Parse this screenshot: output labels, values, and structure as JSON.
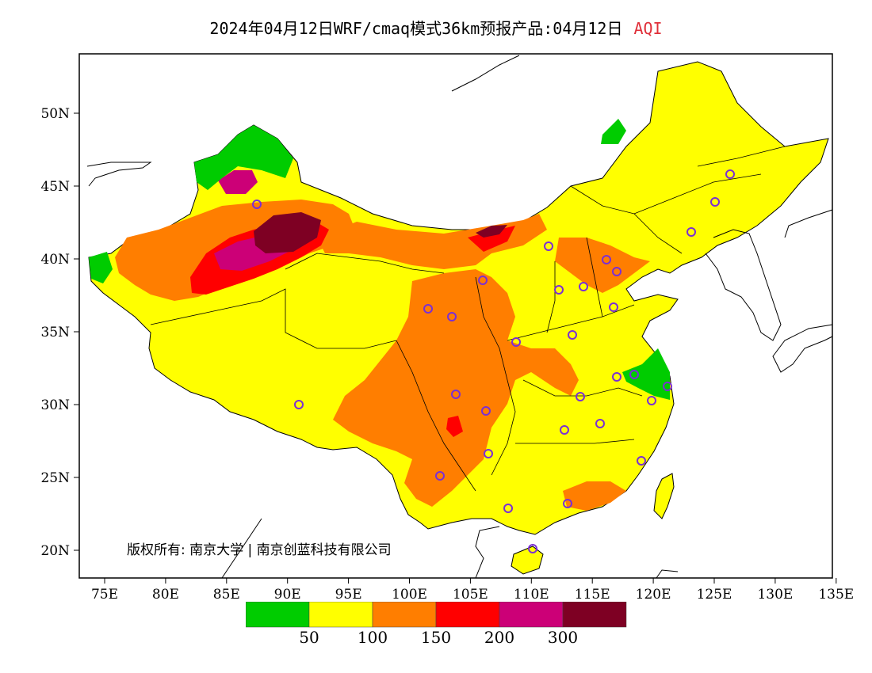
{
  "title": {
    "main": "2024年04月12日WRF/cmaq模式36km预报产品:04月12日",
    "variable": "AQI",
    "variable_color": "#e0303a"
  },
  "copyright": "版权所有: 南京大学 | 南京创蓝科技有限公司",
  "axes": {
    "x_ticks": [
      "75E",
      "80E",
      "85E",
      "90E",
      "95E",
      "100E",
      "105E",
      "110E",
      "115E",
      "120E",
      "125E",
      "130E",
      "135E"
    ],
    "y_ticks": [
      "50N",
      "45N",
      "40N",
      "35N",
      "30N",
      "25N",
      "20N"
    ]
  },
  "legend": {
    "bins": [
      {
        "color": "#00cc00"
      },
      {
        "color": "#ffff00"
      },
      {
        "color": "#ff7e00"
      },
      {
        "color": "#ff0000"
      },
      {
        "color": "#cc0077"
      },
      {
        "color": "#7e0023"
      }
    ],
    "thresholds": [
      "50",
      "100",
      "150",
      "200",
      "300"
    ]
  },
  "colors": {
    "land_default": "#ffff00",
    "sea": "#ffffff",
    "border": "#000000",
    "city_marker": "#7b2fd4"
  }
}
